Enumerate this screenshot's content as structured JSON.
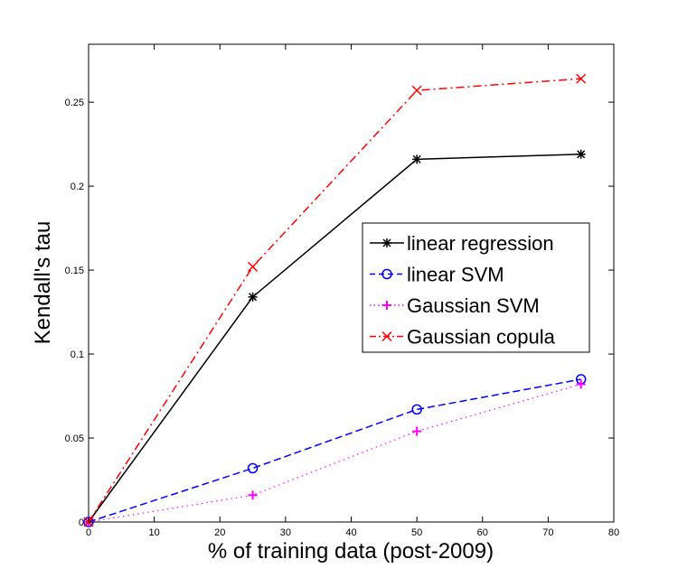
{
  "chart_data": {
    "type": "line",
    "title": "",
    "xlabel": "% of training data (post-2009)",
    "ylabel": "Kendall's tau",
    "xlim": [
      0,
      80
    ],
    "ylim": [
      0,
      0.2845
    ],
    "xticks": [
      0,
      10,
      20,
      30,
      40,
      50,
      60,
      70,
      80
    ],
    "xtick_labels": [
      "0",
      "10",
      "20",
      "30",
      "40",
      "50",
      "60",
      "70",
      "80"
    ],
    "yticks": [
      0,
      0.05,
      0.1,
      0.15,
      0.2,
      0.25
    ],
    "ytick_labels": [
      "0",
      "0.05",
      "0.1",
      "0.15",
      "0.2",
      "0.25"
    ],
    "grid": false,
    "legend_placement": "center-right",
    "x": [
      0,
      25,
      50,
      75
    ],
    "series": [
      {
        "name": "linear regression",
        "color": "#000000",
        "line": "solid",
        "marker": "asterisk",
        "values": [
          0,
          0.134,
          0.216,
          0.219
        ]
      },
      {
        "name": "linear SVM",
        "color": "#0000ff",
        "line": "dashed",
        "marker": "circle",
        "values": [
          0,
          0.032,
          0.067,
          0.085
        ]
      },
      {
        "name": "Gaussian SVM",
        "color": "#ff00ff",
        "line": "dotted",
        "marker": "plus",
        "values": [
          0,
          0.016,
          0.054,
          0.082
        ]
      },
      {
        "name": "Gaussian copula",
        "color": "#ff0000",
        "line": "dashdot",
        "marker": "x",
        "values": [
          0,
          0.152,
          0.257,
          0.264
        ]
      }
    ]
  }
}
